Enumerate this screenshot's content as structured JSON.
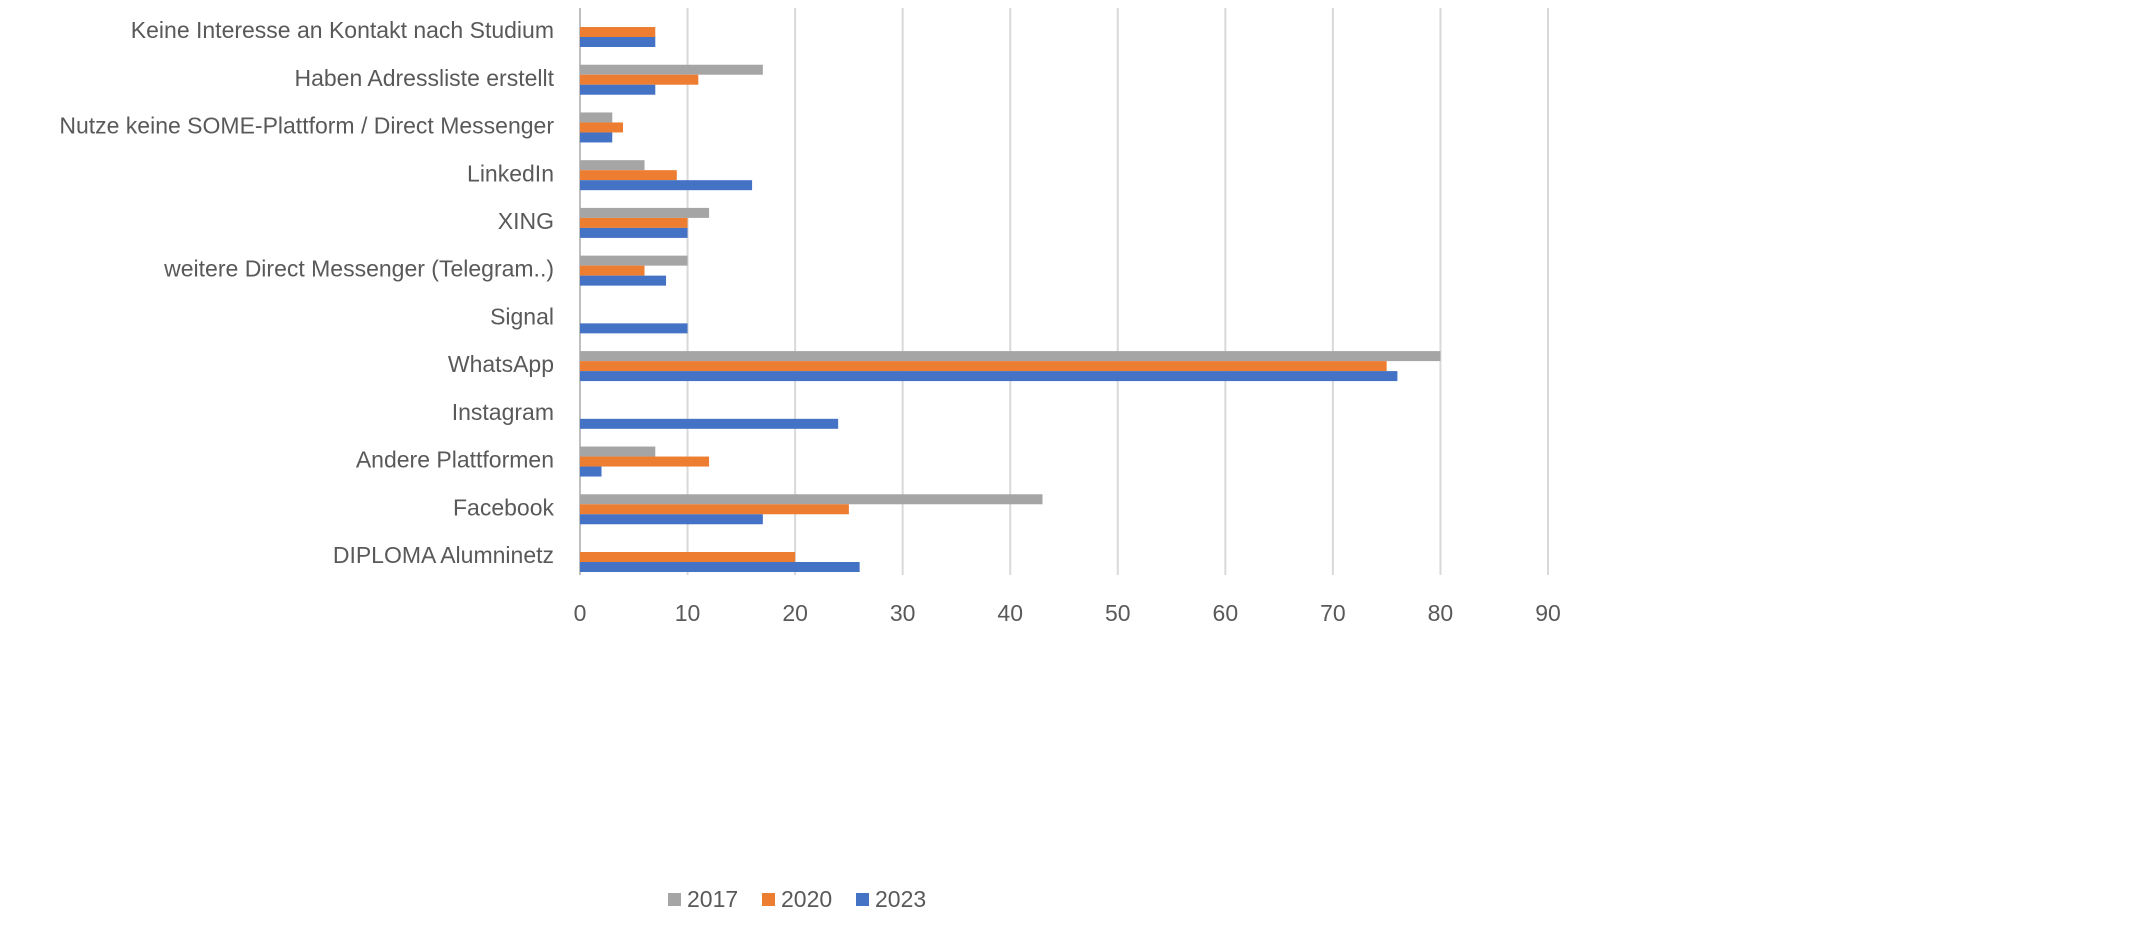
{
  "chart_data": {
    "type": "hbar",
    "categories": [
      "Keine Interesse an Kontakt nach Studium",
      "Haben Adressliste erstellt",
      "Nutze  keine SOME-Plattform / Direct Messenger",
      "LinkedIn",
      "XING",
      "weitere Direct Messenger (Telegram..)",
      "Signal",
      "WhatsApp",
      "Instagram",
      "Andere Plattformen",
      "Facebook",
      "DIPLOMA Alumninetz"
    ],
    "series": [
      {
        "name": "2017",
        "color": "#a5a5a5",
        "values": [
          null,
          17,
          3,
          6,
          12,
          10,
          null,
          80,
          null,
          7,
          43,
          null
        ]
      },
      {
        "name": "2020",
        "color": "#ed7d31",
        "values": [
          7,
          11,
          4,
          9,
          10,
          6,
          null,
          75,
          null,
          12,
          25,
          20
        ]
      },
      {
        "name": "2023",
        "color": "#4472c4",
        "values": [
          7,
          7,
          3,
          16,
          10,
          8,
          10,
          76,
          24,
          2,
          17,
          26
        ]
      }
    ],
    "xlim": [
      0,
      90
    ],
    "xticks": [
      0,
      10,
      20,
      30,
      40,
      50,
      60,
      70,
      80,
      90
    ],
    "grid": true,
    "legend": "bottom"
  }
}
